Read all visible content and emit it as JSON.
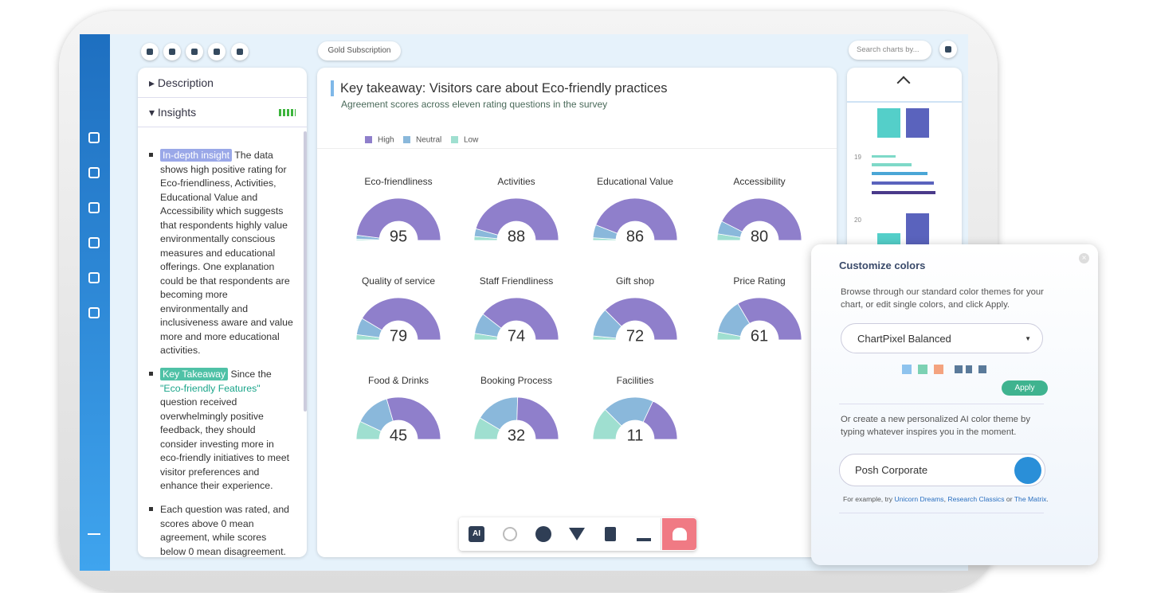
{
  "toolbar": {
    "subscription": "Gold Subscription",
    "search_placeholder": "Search charts by..."
  },
  "left_panel": {
    "description": "Description",
    "insights": "Insights",
    "items": [
      {
        "tag": "In-depth insight",
        "text": "The data shows high positive rating for Eco-friendliness, Activities, Educational Value and Accessibility which suggests that respondents highly value environmentally conscious measures and educational offerings. One explanation could be that respondents are becoming more environmentally and inclusiveness aware and value more and more educational activities."
      },
      {
        "tag": "Key Takeaway",
        "text": "Since the",
        "link": "\"Eco-friendly Features\"",
        "text2": "question received overwhelmingly positive feedback, they should consider investing more in eco-friendly initiatives to meet visitor preferences and enhance their experience."
      },
      {
        "text": "Each question was rated, and scores above 0 mean agreement, while scores below 0 mean disagreement."
      }
    ]
  },
  "chart_data": {
    "type": "gauge",
    "title": "Key takeaway: Visitors care about Eco-friendly practices",
    "subtitle": "Agreement scores across eleven rating questions in the survey",
    "categories": [
      "Eco-friendliness",
      "Activities",
      "Educational Value",
      "Accessibility",
      "Quality of service",
      "Staff Friendliness",
      "Gift shop",
      "Price Rating",
      "Food & Drinks",
      "Booking Process",
      "Facilities"
    ],
    "scores": [
      95,
      88,
      86,
      80,
      79,
      74,
      72,
      61,
      45,
      32,
      11
    ],
    "series": [
      {
        "name": "High",
        "color": "#8f7fcb",
        "values": [
          96,
          91,
          88,
          85,
          83,
          79,
          75,
          67,
          59,
          49,
          36
        ]
      },
      {
        "name": "Neutral",
        "color": "#8ab8db",
        "values": [
          3,
          6,
          10,
          10,
          13,
          16,
          22,
          27,
          27,
          34,
          39
        ]
      },
      {
        "name": "Low",
        "color": "#9fdfd0",
        "values": [
          1,
          3,
          2,
          5,
          4,
          5,
          3,
          6,
          14,
          17,
          25
        ]
      }
    ]
  },
  "thumbnails": {
    "numbers": [
      "19",
      "20"
    ]
  },
  "bottom_toolbar": {
    "ai_label": "AI"
  },
  "customize": {
    "title": "Customize colors",
    "description": "Browse through our standard color themes for your chart, or edit single colors, and click Apply.",
    "theme": "ChartPixel Balanced",
    "apply": "Apply",
    "ai_text": "Or create a new personalized AI color theme by typing whatever inspires you in the moment.",
    "ai_input": "Posh Corporate",
    "example_prefix": "For example, try",
    "examples": [
      "Unicorn Dreams",
      "Research Classics",
      "The Matrix"
    ],
    "example_joiner": "or"
  }
}
